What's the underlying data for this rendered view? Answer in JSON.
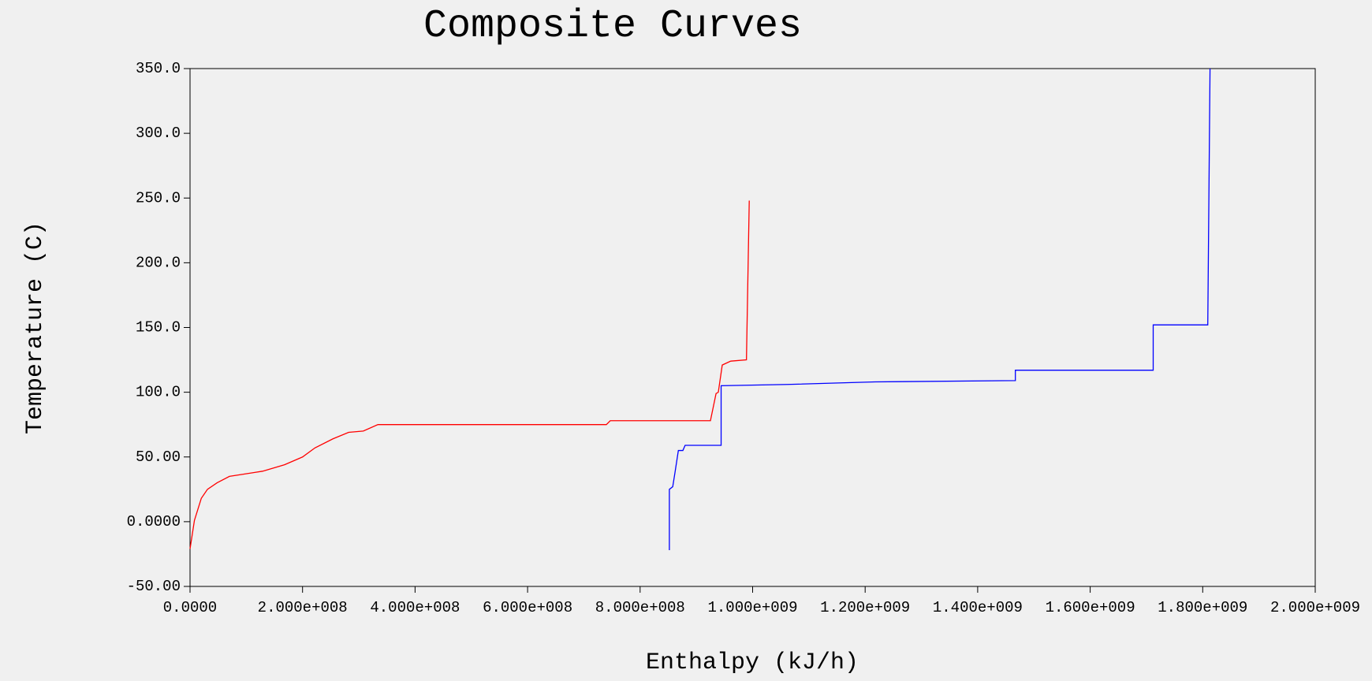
{
  "chart_data": {
    "type": "line",
    "title": "Composite Curves",
    "x_label": "Enthalpy (kJ/h)",
    "y_label": "Temperature (C)",
    "xlim": [
      0,
      2000000000
    ],
    "ylim": [
      -50,
      350
    ],
    "xticks": [
      {
        "value": 0,
        "label": "0.0000"
      },
      {
        "value": 200000000,
        "label": "2.000e+008"
      },
      {
        "value": 400000000,
        "label": "4.000e+008"
      },
      {
        "value": 600000000,
        "label": "6.000e+008"
      },
      {
        "value": 800000000,
        "label": "8.000e+008"
      },
      {
        "value": 1000000000,
        "label": "1.000e+009"
      },
      {
        "value": 1200000000,
        "label": "1.200e+009"
      },
      {
        "value": 1400000000,
        "label": "1.400e+009"
      },
      {
        "value": 1600000000,
        "label": "1.600e+009"
      },
      {
        "value": 1800000000,
        "label": "1.800e+009"
      },
      {
        "value": 2000000000,
        "label": "2.000e+009"
      }
    ],
    "yticks": [
      {
        "value": -50,
        "label": "-50.00"
      },
      {
        "value": 0,
        "label": "0.0000"
      },
      {
        "value": 50,
        "label": "50.00"
      },
      {
        "value": 100,
        "label": "100.0"
      },
      {
        "value": 150,
        "label": "150.0"
      },
      {
        "value": 200,
        "label": "200.0"
      },
      {
        "value": 250,
        "label": "250.0"
      },
      {
        "value": 300,
        "label": "300.0"
      },
      {
        "value": 350,
        "label": "350.0"
      }
    ],
    "series": [
      {
        "color": "#ff0000",
        "x": [
          0,
          7800000,
          20000000,
          31000000,
          48000000,
          70000000,
          114000000,
          129000000,
          168000000,
          200000000,
          222000000,
          254000000,
          282000000,
          308000000,
          334000000,
          740000000,
          747000000,
          925000000,
          935000000,
          939000000,
          946000000,
          961000000,
          989000000,
          994000000
        ],
        "values": [
          -21,
          1,
          18,
          25,
          30,
          35,
          38,
          39,
          44,
          50,
          57,
          64,
          69,
          70,
          75,
          75,
          78,
          78,
          99,
          100,
          121,
          124,
          125,
          248
        ]
      },
      {
        "color": "#0000ff",
        "x": [
          852000000,
          852000000,
          858000000,
          862000000,
          868000000,
          876000000,
          880000000,
          944000000,
          944000000,
          1062000000,
          1218000000,
          1467000000,
          1467000000,
          1712000000,
          1712000000,
          1809000000,
          1813000000
        ],
        "values": [
          -22,
          25,
          27,
          38,
          55,
          55,
          59,
          59,
          105,
          106,
          108,
          109,
          117,
          117,
          152,
          152,
          350
        ]
      }
    ]
  }
}
